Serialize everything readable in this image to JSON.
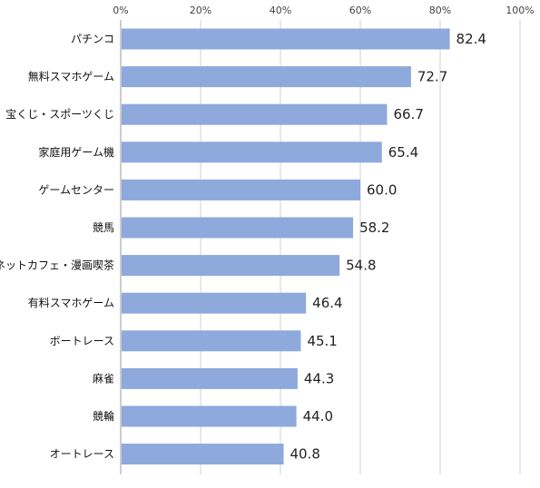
{
  "chart_data": {
    "type": "bar",
    "orientation": "horizontal",
    "title": "",
    "xlabel": "",
    "ylabel": "",
    "categories": [
      "パチンコ",
      "無料スマホゲーム",
      "宝くじ・スポーツくじ",
      "家庭用ゲーム機",
      "ゲームセンター",
      "競馬",
      "ネットカフェ・漫画喫茶",
      "有料スマホゲーム",
      "ボートレース",
      "麻雀",
      "競輪",
      "オートレース"
    ],
    "values": [
      82.4,
      72.7,
      66.7,
      65.4,
      60.0,
      58.2,
      54.8,
      46.4,
      45.1,
      44.3,
      44.0,
      40.8
    ],
    "value_labels": [
      "82.4",
      "72.7",
      "66.7",
      "65.4",
      "60.0",
      "58.2",
      "54.8",
      "46.4",
      "45.1",
      "44.3",
      "44.0",
      "40.8"
    ],
    "xlim": [
      0,
      100
    ],
    "x_ticks": [
      0,
      20,
      40,
      60,
      80,
      100
    ],
    "x_tick_labels": [
      "0%",
      "20%",
      "40%",
      "60%",
      "80%",
      "100%"
    ],
    "x_axis_position": "top",
    "grid": true,
    "legend": "none",
    "colors": {
      "bar": "#8ea9db",
      "grid": "#d0d0d0"
    }
  }
}
